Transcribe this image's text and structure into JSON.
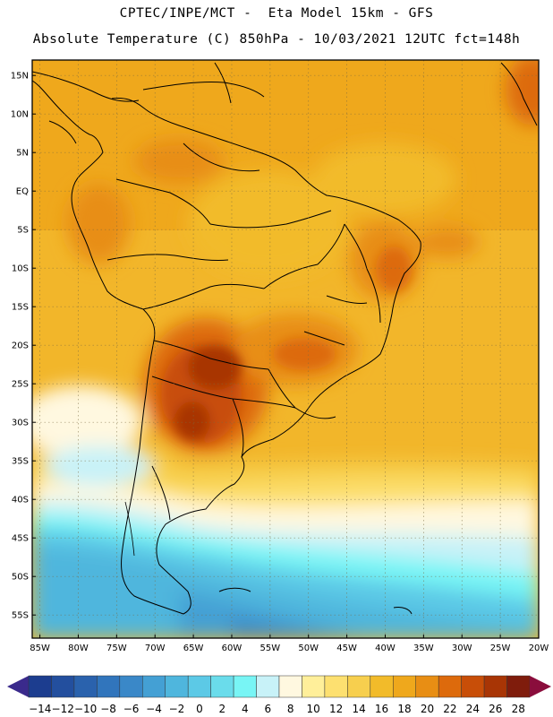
{
  "header": {
    "line1": "CPTEC/INPE/MCT -  Eta Model 15km - GFS",
    "line2": "Absolute Temperature (C) 850hPa - 10/03/2021 12UTC fct=148h"
  },
  "map": {
    "lat_ticks": [
      "15N",
      "10N",
      "5N",
      "EQ",
      "5S",
      "10S",
      "15S",
      "20S",
      "25S",
      "30S",
      "35S",
      "40S",
      "45S",
      "50S",
      "55S"
    ],
    "lon_ticks": [
      "85W",
      "80W",
      "75W",
      "70W",
      "65W",
      "60W",
      "55W",
      "50W",
      "45W",
      "40W",
      "35W",
      "30W",
      "25W",
      "20W"
    ],
    "lat_range": [
      17,
      -58
    ],
    "lon_range": [
      -86,
      -20
    ]
  },
  "colorbar": {
    "labels": [
      "-14",
      "-12",
      "-10",
      "-8",
      "-6",
      "-4",
      "-2",
      "0",
      "2",
      "4",
      "6",
      "8",
      "10",
      "12",
      "14",
      "16",
      "18",
      "20",
      "22",
      "24",
      "26",
      "28"
    ],
    "under_color": "#3a2a8c",
    "over_color": "#8a0d3c",
    "colors": [
      "#1c3d8f",
      "#234f9e",
      "#2a62ad",
      "#3175bc",
      "#3a88c8",
      "#44a0d4",
      "#4fb6dd",
      "#5cc9e6",
      "#6adceb",
      "#78f5f5",
      "#c8f2f8",
      "#fff8e0",
      "#ffef9a",
      "#fde070",
      "#f7cf4e",
      "#f2bb2a",
      "#efa81c",
      "#e88e14",
      "#dd6a0c",
      "#c84e08",
      "#a83505",
      "#7f1c0c"
    ]
  }
}
